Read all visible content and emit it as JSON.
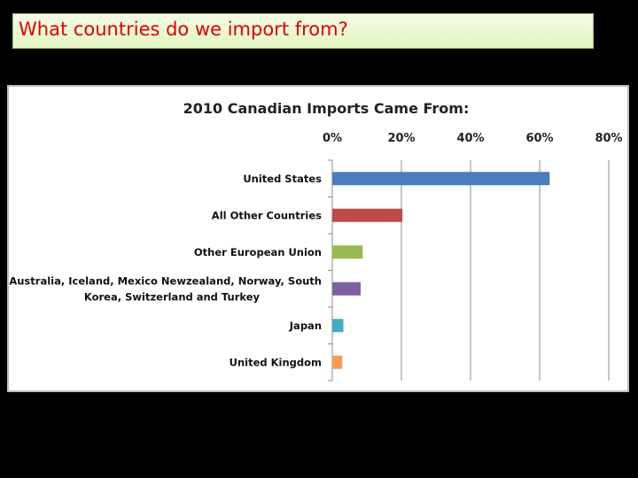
{
  "slide": {
    "title": "What countries do we import from?"
  },
  "chart_data": {
    "type": "bar",
    "orientation": "horizontal",
    "title": "2010 Canadian Imports Came From:",
    "xlabel": "",
    "ylabel": "",
    "xlim": [
      0,
      80
    ],
    "x_ticks": [
      "0%",
      "20%",
      "40%",
      "60%",
      "80%"
    ],
    "x_tick_values": [
      0,
      20,
      40,
      60,
      80
    ],
    "axis_position": "top",
    "grid": true,
    "legend": "none",
    "categories": [
      [
        "United States"
      ],
      [
        "All Other Countries"
      ],
      [
        "Other European Union"
      ],
      [
        "Australia, Iceland, Mexico Newzealand, Norway, South",
        "Korea, Switzerland and Turkey"
      ],
      [
        "Japan"
      ],
      [
        "United Kingdom"
      ]
    ],
    "values": [
      62.9,
      20.3,
      8.8,
      8.2,
      3.2,
      2.9
    ],
    "colors": [
      "#4a7ebb",
      "#be4b48",
      "#98b954",
      "#7d60a0",
      "#46aac5",
      "#f59d56"
    ]
  }
}
